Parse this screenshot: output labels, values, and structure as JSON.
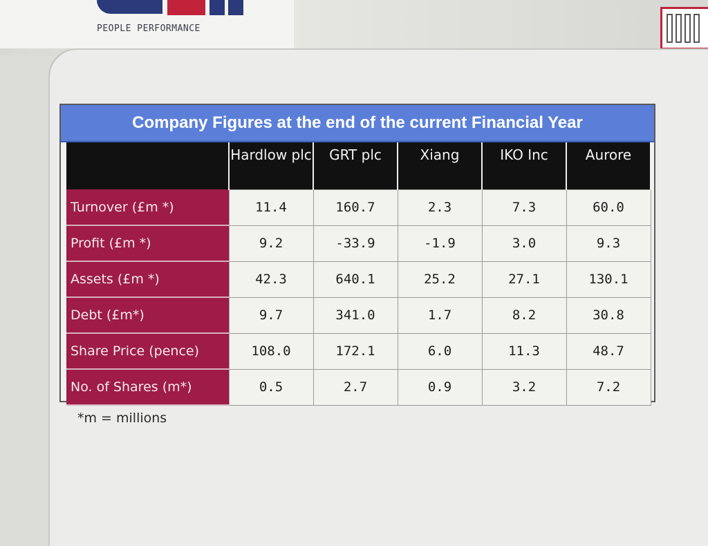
{
  "header": {
    "tagline": "PEOPLE PERFORMANCE"
  },
  "table": {
    "title": "Company Figures at the end of the current Financial Year",
    "columns": [
      "Hardlow plc",
      "GRT plc",
      "Xiang",
      "IKO Inc",
      "Aurore"
    ],
    "rows": [
      {
        "label": "Turnover (£m *)",
        "values": [
          "11.4",
          "160.7",
          "2.3",
          "7.3",
          "60.0"
        ]
      },
      {
        "label": "Profit (£m *)",
        "values": [
          "9.2",
          "-33.9",
          "-1.9",
          "3.0",
          "9.3"
        ]
      },
      {
        "label": "Assets (£m *)",
        "values": [
          "42.3",
          "640.1",
          "25.2",
          "27.1",
          "130.1"
        ]
      },
      {
        "label": "Debt (£m*)",
        "values": [
          "9.7",
          "341.0",
          "1.7",
          "8.2",
          "30.8"
        ]
      },
      {
        "label": "Share Price (pence)",
        "values": [
          "108.0",
          "172.1",
          "6.0",
          "11.3",
          "48.7"
        ]
      },
      {
        "label": "No. of Shares (m*)",
        "values": [
          "0.5",
          "2.7",
          "0.9",
          "3.2",
          "7.2"
        ]
      }
    ]
  },
  "footnote": "*m = millions",
  "colors": {
    "title_bar": "#5b7fd8",
    "row_header": "#9e1c47",
    "column_header": "#111111",
    "brand_red": "#c0233a",
    "brand_navy": "#2a3a7a"
  }
}
